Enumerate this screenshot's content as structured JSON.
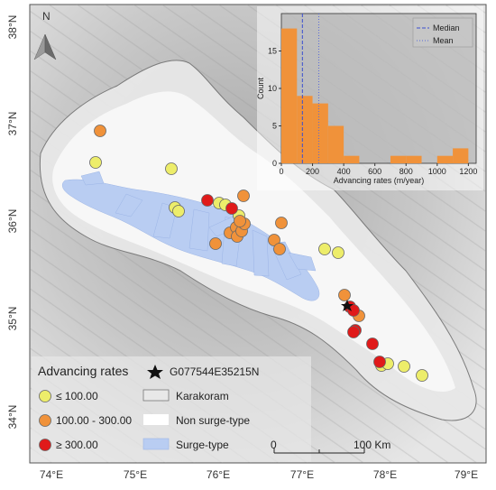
{
  "axes": {
    "lat_labels": [
      "38°N",
      "37°N",
      "36°N",
      "35°N",
      "34°N"
    ],
    "lon_labels": [
      "74°E",
      "75°E",
      "76°E",
      "77°E",
      "78°E",
      "79°E"
    ]
  },
  "north_arrow": {
    "label": "N"
  },
  "legend": {
    "title": "Advancing rates",
    "classes": [
      {
        "label": "≤ 100.00",
        "color": "#eded6a"
      },
      {
        "label": "100.00 - 300.00",
        "color": "#f0923a"
      },
      {
        "label": "≥ 300.00",
        "color": "#e01a1a"
      }
    ],
    "star_label": "G077544E35215N",
    "karakoram_label": "Karakoram",
    "non_surge_label": "Non surge-type",
    "surge_label": "Surge-type",
    "surge_color": "#b9cdf2"
  },
  "scalebar": {
    "start": "0",
    "end": "100 Km"
  },
  "chart_data": {
    "type": "bar",
    "xlabel": "Advancing rates (m/year)",
    "ylabel": "Count",
    "xlim": [
      0,
      1250
    ],
    "ylim": [
      0,
      20
    ],
    "xticks": [
      "0",
      "200",
      "400",
      "600",
      "800",
      "1000",
      "1200"
    ],
    "yticks": [
      "0",
      "5",
      "10",
      "15"
    ],
    "bin_width": 100,
    "bins": [
      {
        "start": 0,
        "count": 18
      },
      {
        "start": 100,
        "count": 9
      },
      {
        "start": 200,
        "count": 8
      },
      {
        "start": 300,
        "count": 5
      },
      {
        "start": 400,
        "count": 1
      },
      {
        "start": 700,
        "count": 1
      },
      {
        "start": 800,
        "count": 1
      },
      {
        "start": 1000,
        "count": 1
      },
      {
        "start": 1100,
        "count": 2
      }
    ],
    "median": 135,
    "mean": 240,
    "legend": [
      "Median",
      "Mean"
    ],
    "bar_color": "#f0923a"
  }
}
